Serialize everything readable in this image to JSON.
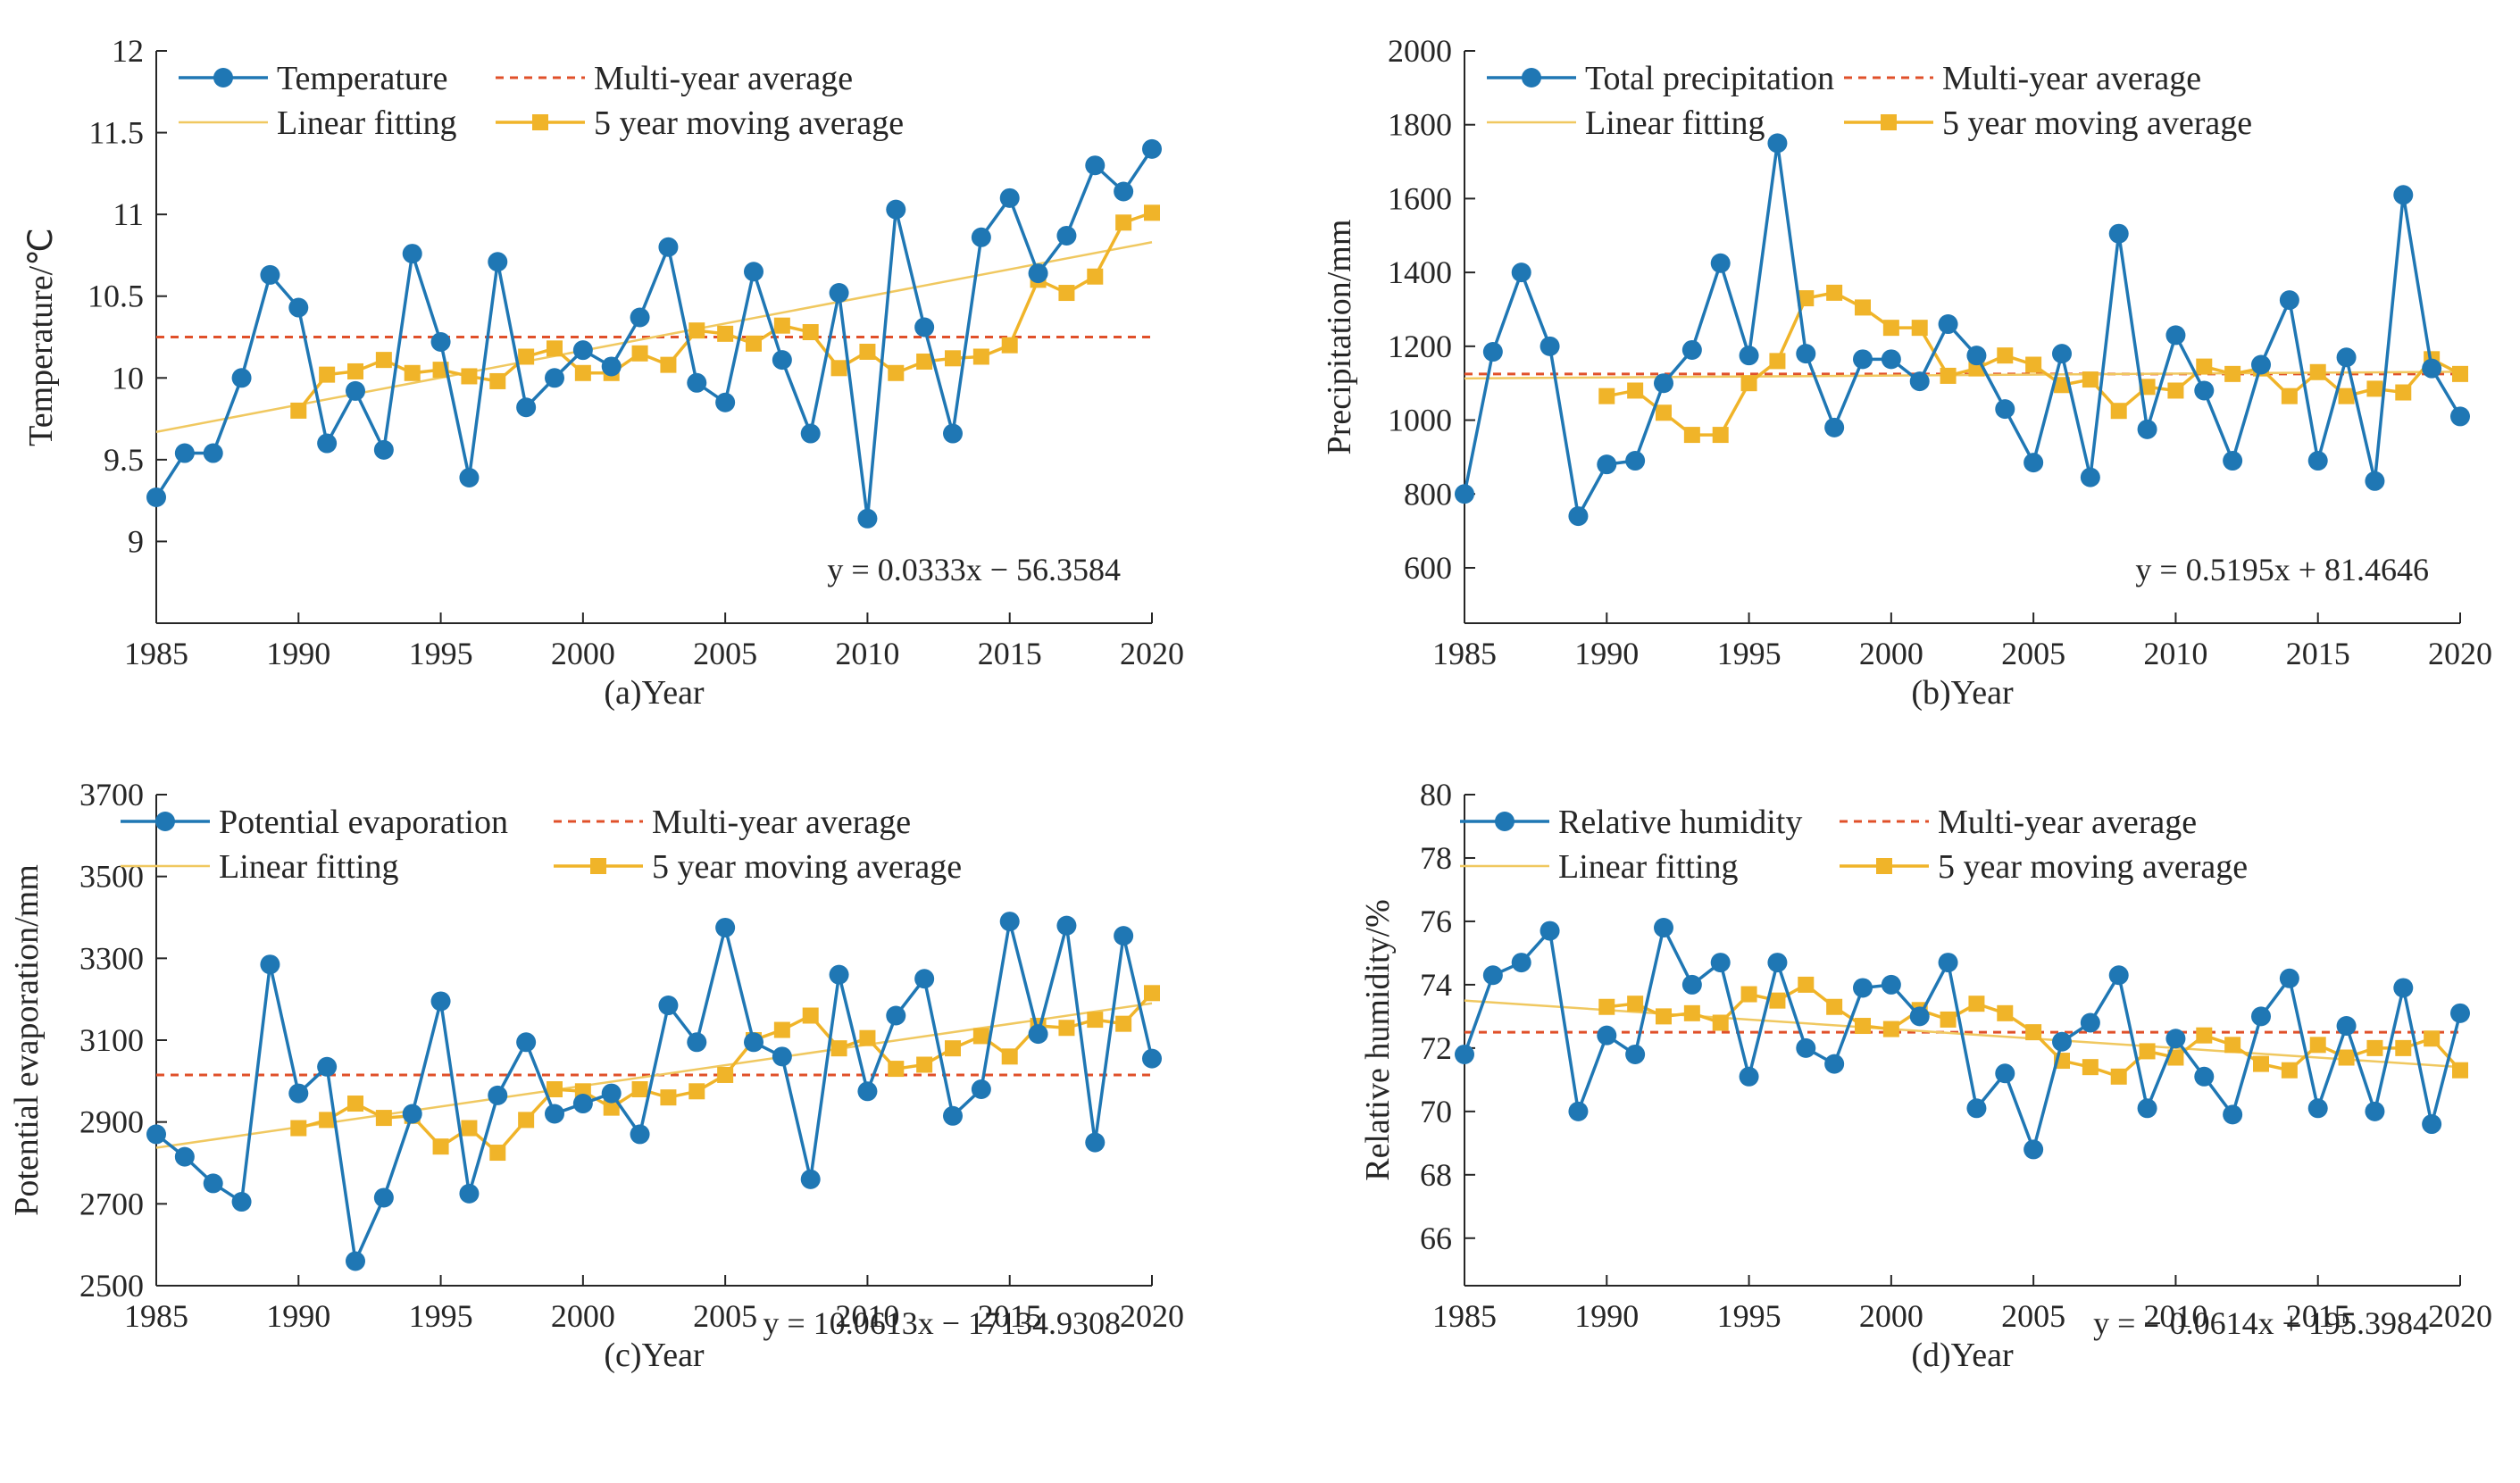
{
  "colors": {
    "obs": "#1f77b4",
    "avg": "#e0502a",
    "fit": "#f0c860",
    "mov": "#f0b429",
    "axis": "#262626"
  },
  "legend": {
    "avg": "Multi-year average",
    "fit": "Linear fitting",
    "mov": "5 year moving average"
  },
  "chart_data": [
    {
      "id": "a",
      "type": "line",
      "xlabel": "(a)Year",
      "ylabel": "Temperature/℃",
      "obs_name": "Temperature",
      "equation": "y = 0.0333x − 56.3584",
      "x_ticks": [
        "1985",
        "1990",
        "1995",
        "2000",
        "2005",
        "2010",
        "2015",
        "2020"
      ],
      "y_ticks": [
        "9",
        "9.5",
        "10",
        "10.5",
        "11",
        "11.5",
        "12"
      ],
      "xlim": [
        1985,
        2020
      ],
      "ylim": [
        8.5,
        12
      ],
      "x": [
        1985,
        1986,
        1987,
        1988,
        1989,
        1990,
        1991,
        1992,
        1993,
        1994,
        1995,
        1996,
        1997,
        1998,
        1999,
        2000,
        2001,
        2002,
        2003,
        2004,
        2005,
        2006,
        2007,
        2008,
        2009,
        2010,
        2011,
        2012,
        2013,
        2014,
        2015,
        2016,
        2017,
        2018,
        2019,
        2020
      ],
      "observed": [
        9.27,
        9.54,
        9.54,
        10.0,
        10.63,
        10.43,
        9.6,
        9.92,
        9.56,
        10.76,
        10.22,
        9.39,
        10.71,
        9.82,
        10.0,
        10.17,
        10.07,
        10.37,
        10.8,
        9.97,
        9.85,
        10.65,
        10.11,
        9.66,
        10.52,
        9.14,
        11.03,
        10.31,
        9.66,
        10.86,
        11.1,
        10.64,
        10.87,
        11.3,
        11.14,
        11.4
      ],
      "multi_year_average": 10.25,
      "linear_fit": [
        9.67,
        10.83
      ],
      "moving_x": [
        1990,
        1991,
        1992,
        1993,
        1994,
        1995,
        1996,
        1997,
        1998,
        1999,
        2000,
        2001,
        2002,
        2003,
        2004,
        2005,
        2006,
        2007,
        2008,
        2009,
        2010,
        2011,
        2012,
        2013,
        2014,
        2015,
        2016,
        2017,
        2018,
        2019,
        2020
      ],
      "moving_average": [
        9.8,
        10.02,
        10.04,
        10.11,
        10.03,
        10.05,
        10.01,
        9.98,
        10.13,
        10.18,
        10.03,
        10.03,
        10.15,
        10.08,
        10.29,
        10.27,
        10.21,
        10.32,
        10.28,
        10.06,
        10.16,
        10.03,
        10.1,
        10.12,
        10.13,
        10.2,
        10.6,
        10.52,
        10.62,
        10.95,
        11.01
      ]
    },
    {
      "id": "b",
      "type": "line",
      "xlabel": "(b)Year",
      "ylabel": "Precipitation/mm",
      "obs_name": "Total precipitation",
      "equation": "y = 0.5195x + 81.4646",
      "x_ticks": [
        "1985",
        "1990",
        "1995",
        "2000",
        "2005",
        "2010",
        "2015",
        "2020"
      ],
      "y_ticks": [
        "600",
        "800",
        "1000",
        "1200",
        "1400",
        "1600",
        "1800",
        "2000"
      ],
      "xlim": [
        1985,
        2020
      ],
      "ylim": [
        450,
        2000
      ],
      "x": [
        1985,
        1986,
        1987,
        1988,
        1989,
        1990,
        1991,
        1992,
        1993,
        1994,
        1995,
        1996,
        1997,
        1998,
        1999,
        2000,
        2001,
        2002,
        2003,
        2004,
        2005,
        2006,
        2007,
        2008,
        2009,
        2010,
        2011,
        2012,
        2013,
        2014,
        2015,
        2016,
        2017,
        2018,
        2019,
        2020
      ],
      "observed": [
        800,
        1185,
        1400,
        1200,
        740,
        880,
        890,
        1100,
        1190,
        1425,
        1175,
        1750,
        1180,
        980,
        1165,
        1165,
        1105,
        1260,
        1175,
        1030,
        885,
        1180,
        845,
        1505,
        975,
        1230,
        1080,
        890,
        1150,
        1325,
        890,
        1170,
        835,
        1610,
        1140,
        1010
      ],
      "multi_year_average": 1125,
      "linear_fit": [
        1113,
        1131
      ],
      "moving_x": [
        1990,
        1991,
        1992,
        1993,
        1994,
        1995,
        1996,
        1997,
        1998,
        1999,
        2000,
        2001,
        2002,
        2003,
        2004,
        2005,
        2006,
        2007,
        2008,
        2009,
        2010,
        2011,
        2012,
        2013,
        2014,
        2015,
        2016,
        2017,
        2018,
        2019,
        2020
      ],
      "moving_average": [
        1065,
        1080,
        1020,
        960,
        960,
        1100,
        1160,
        1330,
        1345,
        1305,
        1250,
        1250,
        1120,
        1140,
        1175,
        1150,
        1095,
        1110,
        1025,
        1090,
        1080,
        1145,
        1125,
        1140,
        1065,
        1130,
        1065,
        1085,
        1075,
        1165,
        1125
      ]
    },
    {
      "id": "c",
      "type": "line",
      "xlabel": "(c)Year",
      "ylabel": "Potential evaporation/mm",
      "obs_name": "Potential evaporation",
      "equation": "y = 10.0613x − 17134.9308",
      "x_ticks": [
        "1985",
        "1990",
        "1995",
        "2000",
        "2005",
        "2010",
        "2015",
        "2020"
      ],
      "y_ticks": [
        "2500",
        "2700",
        "2900",
        "3100",
        "3300",
        "3500",
        "3700"
      ],
      "xlim": [
        1985,
        2020
      ],
      "ylim": [
        2500,
        3700
      ],
      "x": [
        1985,
        1986,
        1987,
        1988,
        1989,
        1990,
        1991,
        1992,
        1993,
        1994,
        1995,
        1996,
        1997,
        1998,
        1999,
        2000,
        2001,
        2002,
        2003,
        2004,
        2005,
        2006,
        2007,
        2008,
        2009,
        2010,
        2011,
        2012,
        2013,
        2014,
        2015,
        2016,
        2017,
        2018,
        2019,
        2020
      ],
      "observed": [
        2870,
        2815,
        2750,
        2705,
        3285,
        2970,
        3035,
        2560,
        2715,
        2920,
        3195,
        2725,
        2965,
        3095,
        2920,
        2945,
        2970,
        2870,
        3185,
        3095,
        3375,
        3095,
        3060,
        2760,
        3260,
        2975,
        3160,
        3250,
        2915,
        2980,
        3390,
        3115,
        3380,
        2850,
        3355,
        3055
      ],
      "multi_year_average": 3015,
      "linear_fit": [
        2837,
        3190
      ],
      "moving_x": [
        1990,
        1991,
        1992,
        1993,
        1994,
        1995,
        1996,
        1997,
        1998,
        1999,
        2000,
        2001,
        2002,
        2003,
        2004,
        2005,
        2006,
        2007,
        2008,
        2009,
        2010,
        2011,
        2012,
        2013,
        2014,
        2015,
        2016,
        2017,
        2018,
        2019,
        2020
      ],
      "moving_average": [
        2885,
        2905,
        2945,
        2910,
        2915,
        2840,
        2885,
        2825,
        2905,
        2980,
        2975,
        2935,
        2980,
        2960,
        2975,
        3015,
        3100,
        3125,
        3160,
        3080,
        3105,
        3030,
        3040,
        3080,
        3110,
        3060,
        3135,
        3130,
        3150,
        3140,
        3215
      ]
    },
    {
      "id": "d",
      "type": "line",
      "xlabel": "(d)Year",
      "ylabel": "Relative humidity/%",
      "obs_name": "Relative humidity",
      "equation": "y = − 0.0614x + 195.3984",
      "x_ticks": [
        "1985",
        "1990",
        "1995",
        "2000",
        "2005",
        "2010",
        "2015",
        "2020"
      ],
      "y_ticks": [
        "66",
        "68",
        "70",
        "72",
        "74",
        "76",
        "78",
        "80"
      ],
      "xlim": [
        1985,
        2020
      ],
      "ylim": [
        64.5,
        80
      ],
      "x": [
        1985,
        1986,
        1987,
        1988,
        1989,
        1990,
        1991,
        1992,
        1993,
        1994,
        1995,
        1996,
        1997,
        1998,
        1999,
        2000,
        2001,
        2002,
        2003,
        2004,
        2005,
        2006,
        2007,
        2008,
        2009,
        2010,
        2011,
        2012,
        2013,
        2014,
        2015,
        2016,
        2017,
        2018,
        2019,
        2020
      ],
      "observed": [
        71.8,
        74.3,
        74.7,
        75.7,
        70.0,
        72.4,
        71.8,
        75.8,
        74.0,
        74.7,
        71.1,
        74.7,
        72.0,
        71.5,
        73.9,
        74.0,
        73.0,
        74.7,
        70.1,
        71.2,
        68.8,
        72.2,
        72.8,
        74.3,
        70.1,
        72.3,
        71.1,
        69.9,
        73.0,
        74.2,
        70.1,
        72.7,
        70.0,
        73.9,
        69.6,
        73.1
      ],
      "multi_year_average": 72.5,
      "linear_fit": [
        73.5,
        71.4
      ],
      "moving_x": [
        1990,
        1991,
        1992,
        1993,
        1994,
        1995,
        1996,
        1997,
        1998,
        1999,
        2000,
        2001,
        2002,
        2003,
        2004,
        2005,
        2006,
        2007,
        2008,
        2009,
        2010,
        2011,
        2012,
        2013,
        2014,
        2015,
        2016,
        2017,
        2018,
        2019,
        2020
      ],
      "moving_average": [
        73.3,
        73.4,
        73.0,
        73.1,
        72.8,
        73.7,
        73.5,
        74.0,
        73.3,
        72.7,
        72.6,
        73.2,
        72.9,
        73.4,
        73.1,
        72.5,
        71.6,
        71.4,
        71.1,
        71.9,
        71.7,
        72.4,
        72.1,
        71.5,
        71.3,
        72.1,
        71.7,
        72.0,
        72.0,
        72.3,
        71.3
      ]
    }
  ]
}
